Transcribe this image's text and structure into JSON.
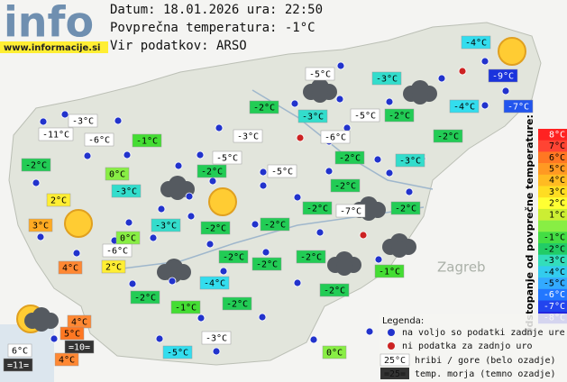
{
  "header": {
    "logo": "info",
    "site": "www.informacije.si",
    "lines": [
      "Datum: 18.01.2026 ura: 22:50",
      "Povprečna temperatura: -1°C",
      "Vir podatkov: ARSO"
    ]
  },
  "map": {
    "place_labels": [
      "Zagreb"
    ],
    "stations": [
      {
        "label": "-4°C",
        "color": "#33ddee"
      },
      {
        "label": "-9°C",
        "color": "#1a33dd"
      },
      {
        "label": "-3°C",
        "color": "#33ddcc"
      },
      {
        "label": "-5°C",
        "color": "#ffffff"
      },
      {
        "label": "-4°C",
        "color": "#33ddee"
      },
      {
        "label": "-7°C",
        "color": "#2255ee"
      },
      {
        "label": "-2°C",
        "color": "#22cc55"
      },
      {
        "label": "-3°C",
        "color": "#33ddcc"
      },
      {
        "label": "-5°C",
        "color": "#ffffff"
      },
      {
        "label": "-2°C",
        "color": "#22cc55"
      },
      {
        "label": "-3°C",
        "color": "#ffffff"
      },
      {
        "label": "-11°C",
        "color": "#ffffff"
      },
      {
        "label": "-6°C",
        "color": "#ffffff"
      },
      {
        "label": "-1°C",
        "color": "#44dd33"
      },
      {
        "label": "-3°C",
        "color": "#ffffff"
      },
      {
        "label": "-6°C",
        "color": "#ffffff"
      },
      {
        "label": "-2°C",
        "color": "#22cc55"
      },
      {
        "label": "-2°C",
        "color": "#22cc55"
      },
      {
        "label": "0°C",
        "color": "#88ee44"
      },
      {
        "label": "-5°C",
        "color": "#ffffff"
      },
      {
        "label": "-2°C",
        "color": "#22cc55"
      },
      {
        "label": "-5°C",
        "color": "#ffffff"
      },
      {
        "label": "-2°C",
        "color": "#22cc55"
      },
      {
        "label": "-3°C",
        "color": "#33ddcc"
      },
      {
        "label": "-3°C",
        "color": "#33ddcc"
      },
      {
        "label": "-2°C",
        "color": "#22cc55"
      },
      {
        "label": "2°C",
        "color": "#ffee33"
      },
      {
        "label": "-2°C",
        "color": "#22cc55"
      },
      {
        "label": "-7°C",
        "color": "#ffffff"
      },
      {
        "label": "-2°C",
        "color": "#22cc55"
      },
      {
        "label": "3°C",
        "color": "#ffaa22"
      },
      {
        "label": "-3°C",
        "color": "#33ddcc"
      },
      {
        "label": "-2°C",
        "color": "#22cc55"
      },
      {
        "label": "-2°C",
        "color": "#22cc55"
      },
      {
        "label": "0°C",
        "color": "#88ee44"
      },
      {
        "label": "-6°C",
        "color": "#ffffff"
      },
      {
        "label": "4°C",
        "color": "#ff8833"
      },
      {
        "label": "2°C",
        "color": "#ffee33"
      },
      {
        "label": "-2°C",
        "color": "#22cc55"
      },
      {
        "label": "-2°C",
        "color": "#22cc55"
      },
      {
        "label": "-2°C",
        "color": "#22cc55"
      },
      {
        "label": "-1°C",
        "color": "#44dd33"
      },
      {
        "label": "-4°C",
        "color": "#33ddee"
      },
      {
        "label": "-2°C",
        "color": "#22cc55"
      },
      {
        "label": "-1°C",
        "color": "#44dd33"
      },
      {
        "label": "-2°C",
        "color": "#22cc55"
      },
      {
        "label": "-2°C",
        "color": "#22cc55"
      },
      {
        "label": "4°C",
        "color": "#ff8833"
      },
      {
        "label": "5°C",
        "color": "#ff7722"
      },
      {
        "label": "6°C",
        "color": "#ffffff"
      },
      {
        "label": "4°C",
        "color": "#ff8833"
      },
      {
        "label": "-5°C",
        "color": "#33ddee"
      },
      {
        "label": "-3°C",
        "color": "#ffffff"
      },
      {
        "label": "0°C",
        "color": "#88ee44"
      }
    ],
    "sea": [
      {
        "label": "=10=",
        "color": "#333333"
      },
      {
        "label": "=11=",
        "color": "#333333"
      }
    ]
  },
  "scale": {
    "title": "Odstopanje od povprečne temperature:",
    "steps": [
      {
        "label": "8°C",
        "color": "#ff2222"
      },
      {
        "label": "7°C",
        "color": "#ff4433"
      },
      {
        "label": "6°C",
        "color": "#ff7722"
      },
      {
        "label": "5°C",
        "color": "#ff9922"
      },
      {
        "label": "4°C",
        "color": "#ffbb22"
      },
      {
        "label": "3°C",
        "color": "#ffdd22"
      },
      {
        "label": "2°C",
        "color": "#ffff33"
      },
      {
        "label": "1°C",
        "color": "#ccee33"
      },
      {
        "label": null,
        "color": "#88ee44"
      },
      {
        "label": "-1°C",
        "color": "#44dd44"
      },
      {
        "label": "-2°C",
        "color": "#22cc66"
      },
      {
        "label": "-3°C",
        "color": "#33ddbb"
      },
      {
        "label": "-4°C",
        "color": "#33ccee"
      },
      {
        "label": "-5°C",
        "color": "#33aaff"
      },
      {
        "label": "-6°C",
        "color": "#2277ff"
      },
      {
        "label": "-7°C",
        "color": "#2244ee"
      },
      {
        "label": "-8°C",
        "color": "#2222dd"
      }
    ]
  },
  "legend": {
    "title": "Legenda:",
    "available": "na voljo so podatki zadnje ure",
    "missing": "ni podatka za zadnjo uro",
    "hill_sample": "25°C",
    "hill_text": "hribi / gore (belo ozadje)",
    "sea_sample": "=25=",
    "sea_text": "temp. morja (temno ozadje)"
  }
}
